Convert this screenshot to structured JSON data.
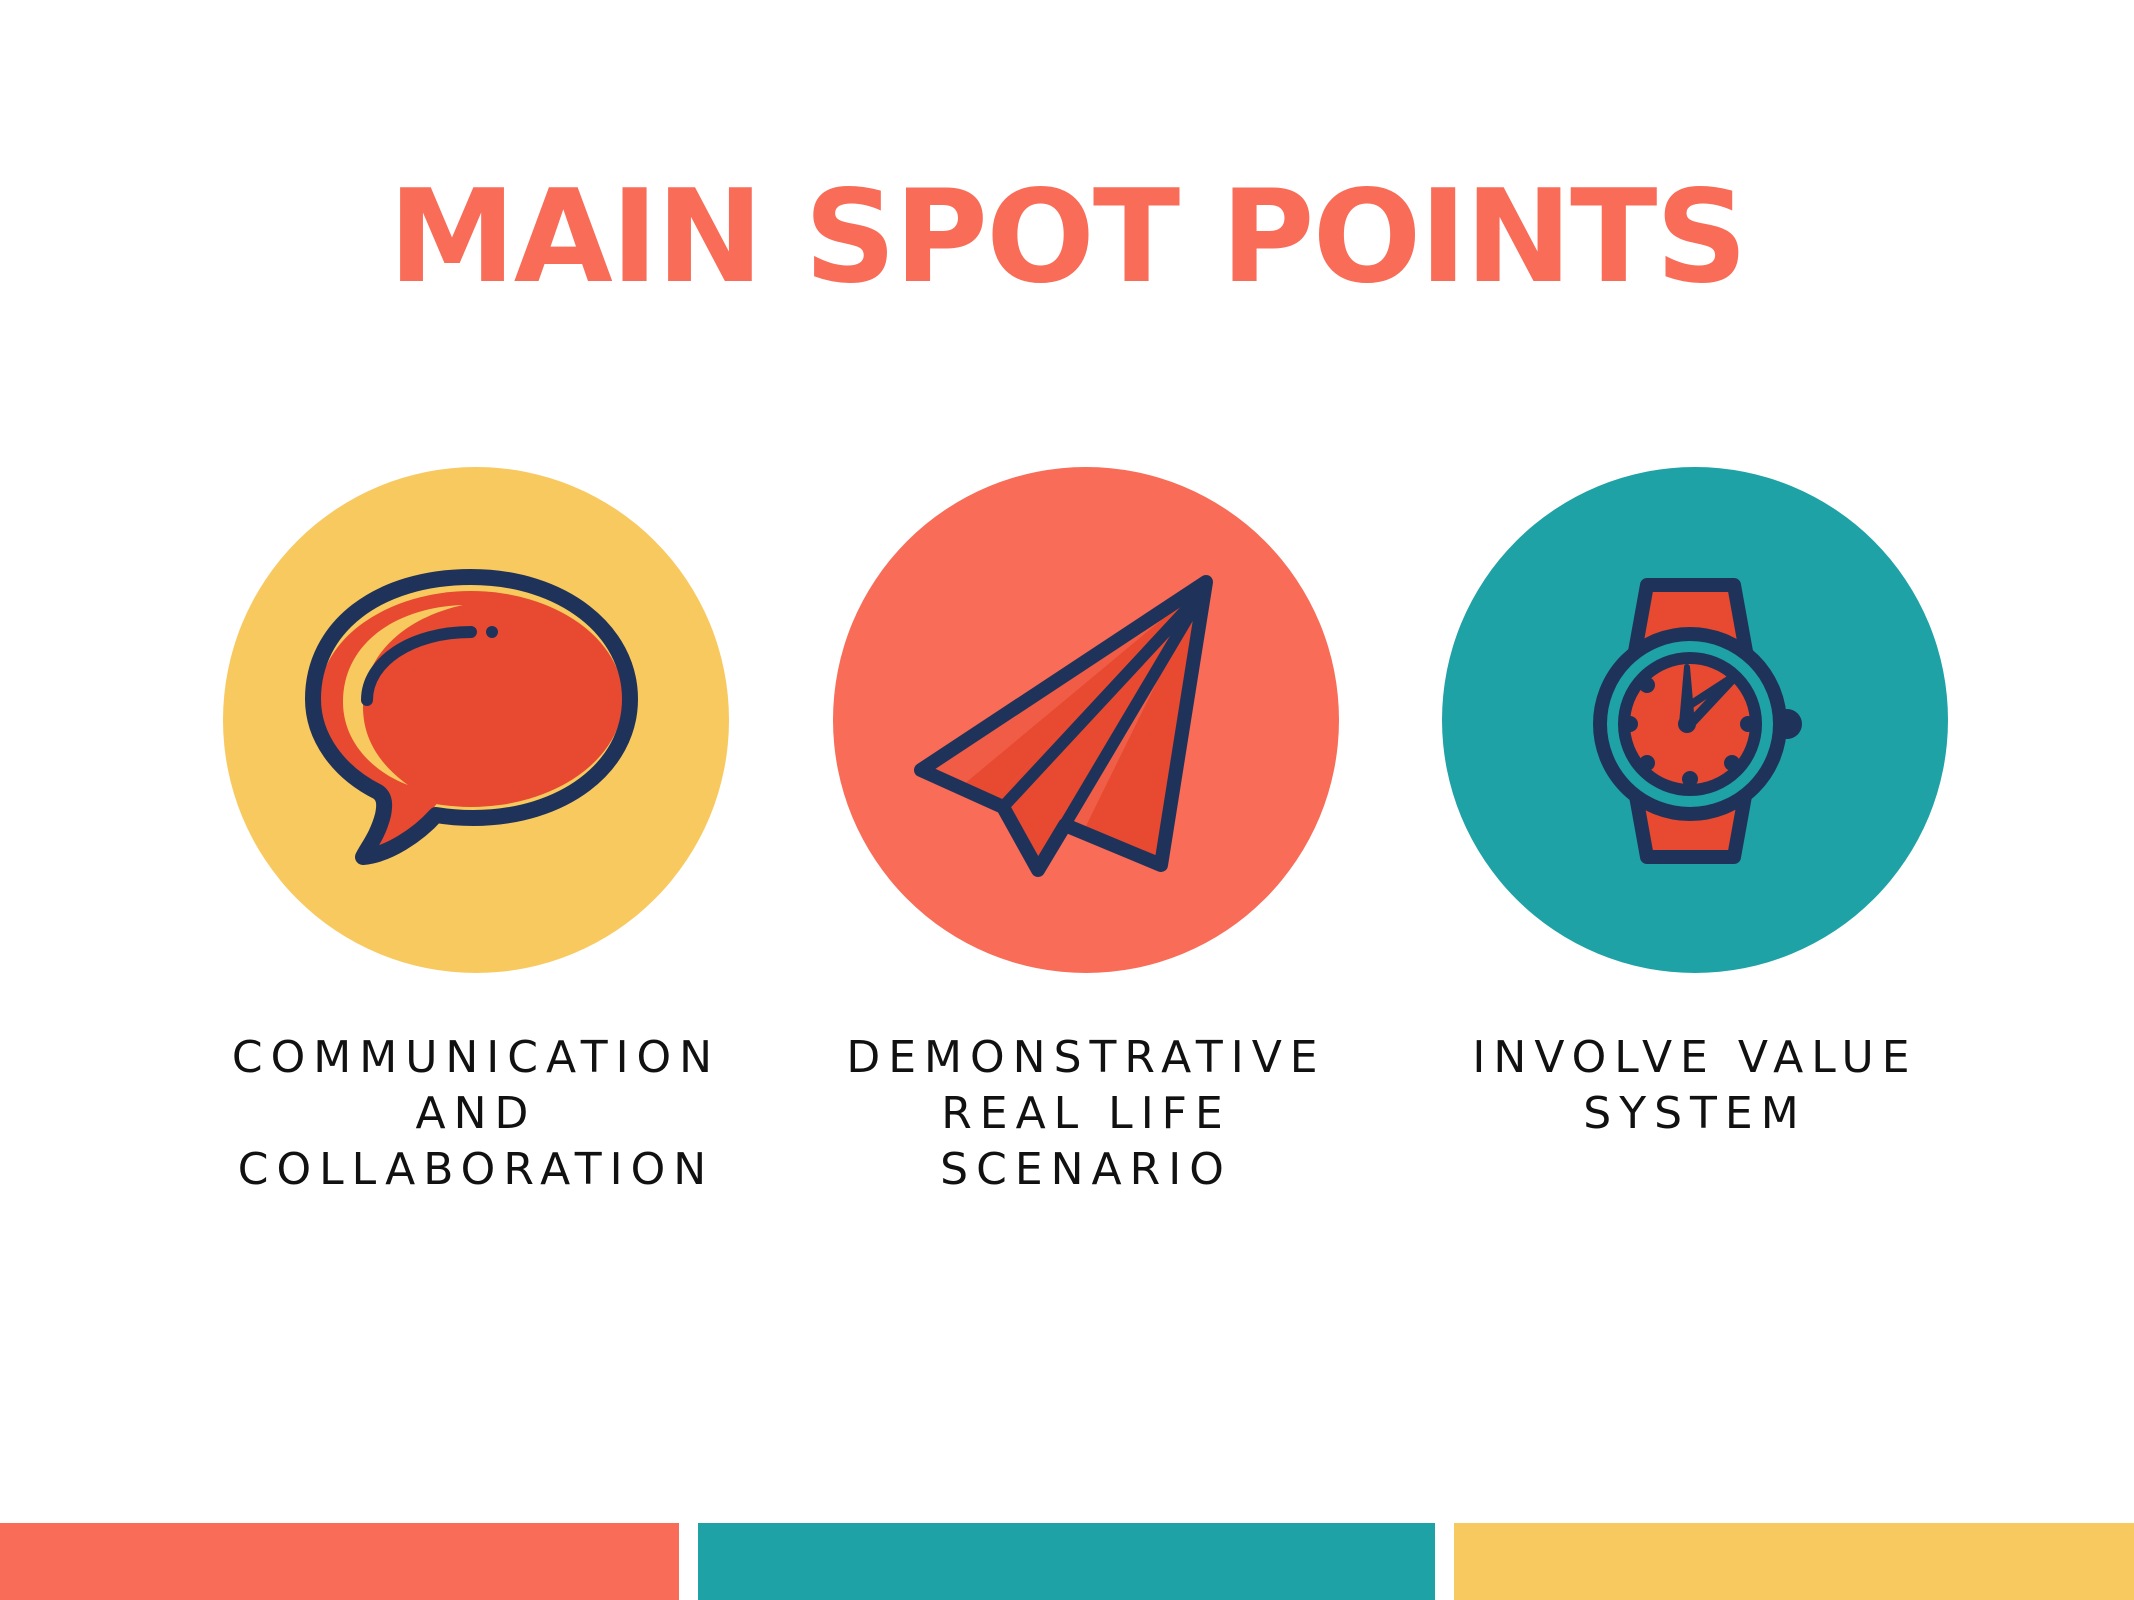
{
  "title": "MAIN SPOT POINTS",
  "colors": {
    "coral": "#f86c58",
    "teal": "#1fa2a5",
    "yellow": "#f8c95f",
    "navy": "#1f335a",
    "red": "#e74a30"
  },
  "points": [
    {
      "icon": "speech-bubble-icon",
      "label_lines": [
        "COMMUNICATION",
        "AND",
        "COLLABORATION"
      ]
    },
    {
      "icon": "paper-plane-icon",
      "label_lines": [
        "DEMONSTRATIVE",
        "REAL LIFE",
        "SCENARIO"
      ]
    },
    {
      "icon": "wristwatch-icon",
      "label_lines": [
        "INVOLVE VALUE",
        "SYSTEM"
      ]
    }
  ]
}
